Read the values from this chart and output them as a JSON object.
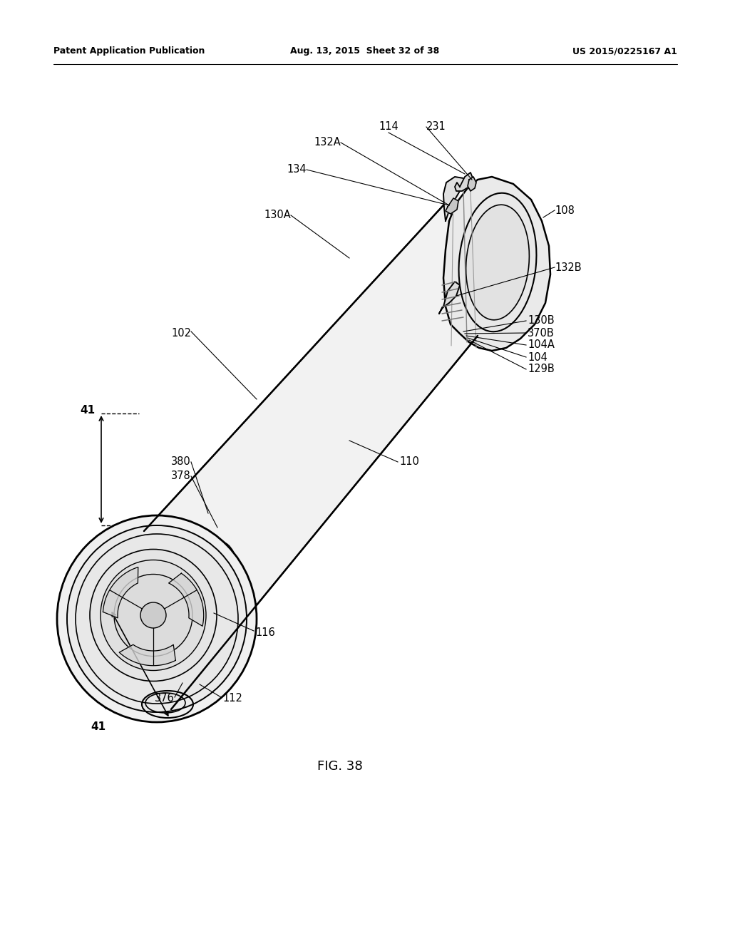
{
  "header_left": "Patent Application Publication",
  "header_center": "Aug. 13, 2015  Sheet 32 of 38",
  "header_right": "US 2015/0225167 A1",
  "figure_label": "FIG. 38",
  "background_color": "#ffffff"
}
